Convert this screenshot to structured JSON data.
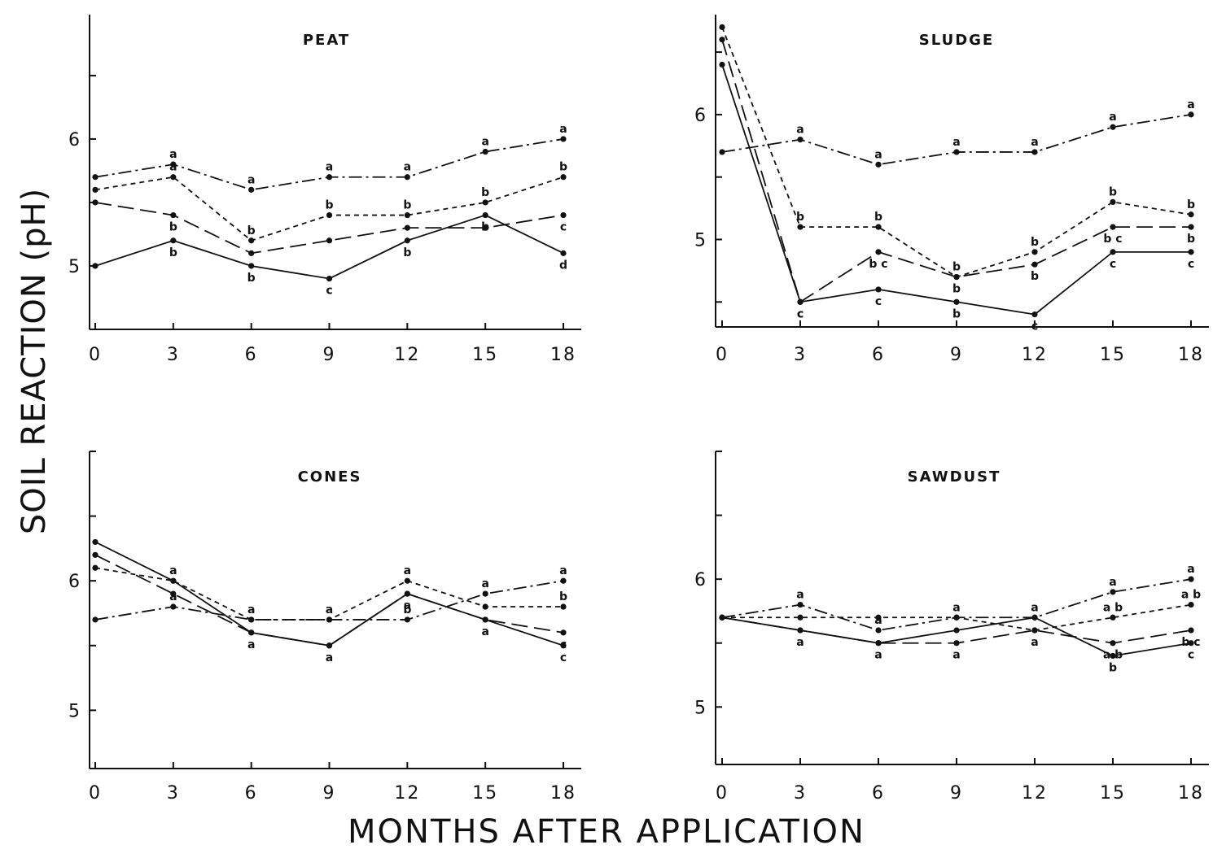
{
  "ylabel": "SOIL REACTION (pH)",
  "xlabel": "MONTHS AFTER APPLICATION",
  "chart_data": [
    {
      "type": "line",
      "title": "PEAT",
      "x": [
        0,
        3,
        6,
        9,
        12,
        15,
        18
      ],
      "xticks": [
        "0",
        "3",
        "6",
        "9",
        "12",
        "15",
        "18"
      ],
      "yticks": [
        "5",
        "6"
      ],
      "ylim": [
        4.5,
        6.98
      ],
      "series": [
        {
          "style": "dashdot",
          "values": [
            5.7,
            5.8,
            5.6,
            5.7,
            5.7,
            5.9,
            6.0
          ],
          "labels": [
            "",
            "a",
            "a",
            "a",
            "a",
            "a",
            "a"
          ]
        },
        {
          "style": "shortdash",
          "values": [
            5.6,
            5.7,
            5.2,
            5.4,
            5.4,
            5.5,
            5.7
          ],
          "labels": [
            "",
            "a",
            "b",
            "b",
            "b",
            "b",
            "b"
          ]
        },
        {
          "style": "longdash",
          "values": [
            5.5,
            5.4,
            5.1,
            5.2,
            5.3,
            5.3,
            5.4
          ],
          "labels": [
            "",
            "b",
            "",
            "",
            "",
            "",
            "c"
          ]
        },
        {
          "style": "solid",
          "values": [
            5.0,
            5.2,
            5.0,
            4.9,
            5.2,
            5.4,
            5.1
          ],
          "labels": [
            "",
            "b",
            "b",
            "c",
            "b",
            "b",
            "d"
          ]
        }
      ]
    },
    {
      "type": "line",
      "title": "SLUDGE",
      "x": [
        0,
        3,
        6,
        9,
        12,
        15,
        18
      ],
      "xticks": [
        "0",
        "3",
        "6",
        "9",
        "12",
        "15",
        "18"
      ],
      "yticks": [
        "5",
        "6"
      ],
      "ylim": [
        4.3,
        6.8
      ],
      "series": [
        {
          "style": "dashdot",
          "values": [
            5.7,
            5.8,
            5.6,
            5.7,
            5.7,
            5.9,
            6.0
          ],
          "labels": [
            "",
            "a",
            "a",
            "a",
            "a",
            "a",
            "a"
          ]
        },
        {
          "style": "shortdash",
          "values": [
            6.7,
            5.1,
            5.1,
            4.7,
            4.9,
            5.3,
            5.2
          ],
          "labels": [
            "",
            "b",
            "b",
            "b",
            "b",
            "b",
            "b"
          ]
        },
        {
          "style": "longdash",
          "values": [
            6.6,
            4.5,
            4.9,
            4.7,
            4.8,
            5.1,
            5.1
          ],
          "labels": [
            "",
            "c",
            "b c",
            "b",
            "b",
            "b c",
            "b"
          ]
        },
        {
          "style": "solid",
          "values": [
            6.4,
            4.5,
            4.6,
            4.5,
            4.4,
            4.9,
            4.9
          ],
          "labels": [
            "",
            "c",
            "c",
            "b",
            "c",
            "c",
            "c"
          ]
        }
      ]
    },
    {
      "type": "line",
      "title": "CONES",
      "x": [
        0,
        3,
        6,
        9,
        12,
        15,
        18
      ],
      "xticks": [
        "0",
        "3",
        "6",
        "9",
        "12",
        "15",
        "18"
      ],
      "yticks": [
        "5",
        "6"
      ],
      "ylim": [
        4.55,
        7.0
      ],
      "series": [
        {
          "style": "dashdot",
          "values": [
            5.7,
            5.8,
            5.7,
            5.7,
            5.7,
            5.9,
            6.0
          ],
          "labels": [
            "",
            "a",
            "a",
            "a",
            "b",
            "a",
            "a"
          ]
        },
        {
          "style": "shortdash",
          "values": [
            6.1,
            6.0,
            5.7,
            5.7,
            6.0,
            5.8,
            5.8
          ],
          "labels": [
            "",
            "a",
            "",
            "",
            "a",
            "",
            "b"
          ]
        },
        {
          "style": "longdash",
          "values": [
            6.2,
            5.9,
            5.6,
            5.5,
            5.9,
            5.7,
            5.6
          ],
          "labels": [
            "",
            "",
            "",
            "",
            "a",
            "",
            "c"
          ]
        },
        {
          "style": "solid",
          "values": [
            6.3,
            6.0,
            5.6,
            5.5,
            5.9,
            5.7,
            5.5
          ],
          "labels": [
            "",
            "",
            "a",
            "a",
            "",
            "a",
            "c"
          ]
        }
      ]
    },
    {
      "type": "line",
      "title": "SAWDUST",
      "x": [
        0,
        3,
        6,
        9,
        12,
        15,
        18
      ],
      "xticks": [
        "0",
        "3",
        "6",
        "9",
        "12",
        "15",
        "18"
      ],
      "yticks": [
        "5",
        "6"
      ],
      "ylim": [
        4.55,
        7.0
      ],
      "series": [
        {
          "style": "dashdot",
          "values": [
            5.7,
            5.8,
            5.6,
            5.7,
            5.7,
            5.9,
            6.0
          ],
          "labels": [
            "",
            "a",
            "a",
            "a",
            "a",
            "a",
            "a"
          ]
        },
        {
          "style": "shortdash",
          "values": [
            5.7,
            5.7,
            5.7,
            5.7,
            5.6,
            5.7,
            5.8
          ],
          "labels": [
            "",
            "",
            "",
            "",
            "",
            "a b",
            "a b"
          ]
        },
        {
          "style": "longdash",
          "values": [
            5.7,
            5.6,
            5.5,
            5.5,
            5.6,
            5.5,
            5.6
          ],
          "labels": [
            "",
            "a",
            "a",
            "a",
            "a",
            "a b",
            "b c"
          ]
        },
        {
          "style": "solid",
          "values": [
            5.7,
            5.6,
            5.5,
            5.6,
            5.7,
            5.4,
            5.5
          ],
          "labels": [
            "",
            "",
            "",
            "",
            "",
            "b",
            "c"
          ]
        }
      ]
    }
  ]
}
